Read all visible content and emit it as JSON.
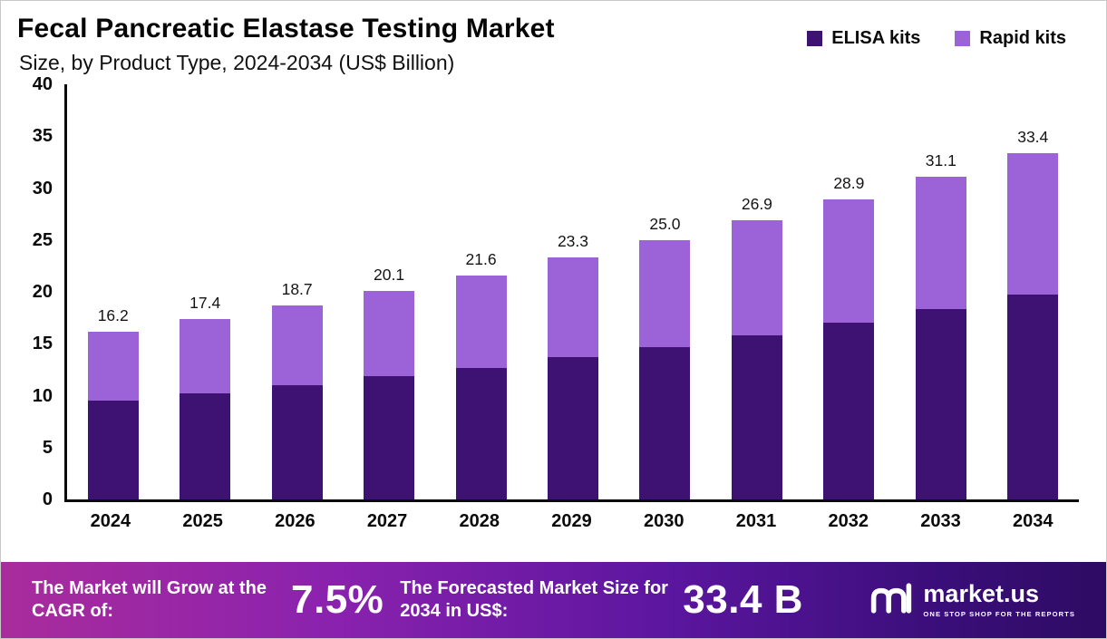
{
  "header": {
    "title": "Fecal Pancreatic Elastase Testing Market",
    "subtitle": "Size, by Product Type, 2024-2034 (US$ Billion)"
  },
  "legend": [
    {
      "label": "ELISA kits",
      "color": "#3e1272"
    },
    {
      "label": "Rapid kits",
      "color": "#9c63d8"
    }
  ],
  "chart_data": {
    "type": "bar",
    "stacked": true,
    "title": "Fecal Pancreatic Elastase Testing Market Size, by Product Type, 2024-2034 (US$ Billion)",
    "categories": [
      "2024",
      "2025",
      "2026",
      "2027",
      "2028",
      "2029",
      "2030",
      "2031",
      "2032",
      "2033",
      "2034"
    ],
    "series": [
      {
        "name": "ELISA kits",
        "color": "#3e1272",
        "values": [
          9.5,
          10.2,
          11.0,
          11.9,
          12.7,
          13.7,
          14.7,
          15.8,
          17.0,
          18.3,
          19.7
        ]
      },
      {
        "name": "Rapid kits",
        "color": "#9c63d8",
        "values": [
          6.7,
          7.2,
          7.7,
          8.2,
          8.9,
          9.6,
          10.3,
          11.1,
          11.9,
          12.8,
          13.7
        ]
      }
    ],
    "totals": [
      16.2,
      17.4,
      18.7,
      20.1,
      21.6,
      23.3,
      25.0,
      26.9,
      28.9,
      31.1,
      33.4
    ],
    "total_labels": [
      "16.2",
      "17.4",
      "18.7",
      "20.1",
      "21.6",
      "23.3",
      "25.0",
      "26.9",
      "28.9",
      "31.1",
      "33.4"
    ],
    "ylim": [
      0,
      40
    ],
    "yticks": [
      0,
      5,
      10,
      15,
      20,
      25,
      30,
      35,
      40
    ],
    "grid": false,
    "legend_position": "top-right",
    "xlabel": "",
    "ylabel": ""
  },
  "banner": {
    "cagr_label": "The Market will Grow at the CAGR of:",
    "cagr_value": "7.5%",
    "forecast_label": "The Forecasted Market Size for 2034 in US$:",
    "forecast_value": "33.4 B",
    "brand": {
      "name": "market.us",
      "tagline": "ONE STOP SHOP FOR THE REPORTS"
    }
  }
}
